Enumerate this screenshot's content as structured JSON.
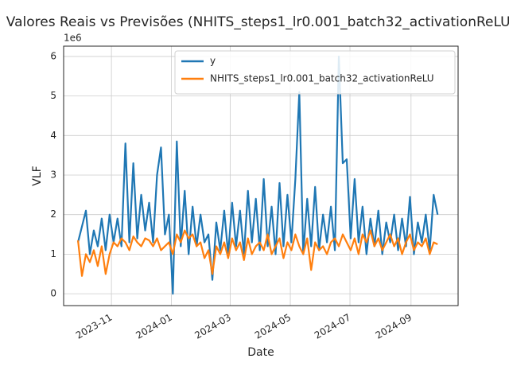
{
  "chart_data": {
    "type": "line",
    "title": "Valores Reais vs Previsões (NHITS_steps1_lr0.001_batch32_activationReLU)",
    "x_label": "Date",
    "y_label": "VLF",
    "offset_label": "1e6",
    "grid": true,
    "legend_loc": "upper right",
    "xlim": [
      2023.7,
      2024.798
    ],
    "xticks": [
      {
        "value": 2023.833,
        "label": "2023-11"
      },
      {
        "value": 2024.0,
        "label": "2024-01"
      },
      {
        "value": 2024.164,
        "label": "2024-03"
      },
      {
        "value": 2024.331,
        "label": "2024-05"
      },
      {
        "value": 2024.497,
        "label": "2024-07"
      },
      {
        "value": 2024.667,
        "label": "2024-09"
      }
    ],
    "ylim": [
      -0.3,
      6.26
    ],
    "yticks": [
      0,
      1,
      2,
      3,
      4,
      5,
      6
    ],
    "x": [
      2023.74,
      2023.751,
      2023.762,
      2023.773,
      2023.784,
      2023.795,
      2023.806,
      2023.817,
      2023.828,
      2023.839,
      2023.85,
      2023.861,
      2023.872,
      2023.883,
      2023.894,
      2023.905,
      2023.916,
      2023.927,
      2023.938,
      2023.949,
      2023.96,
      2023.971,
      2023.982,
      2023.993,
      2024.004,
      2024.015,
      2024.026,
      2024.037,
      2024.048,
      2024.059,
      2024.07,
      2024.081,
      2024.092,
      2024.103,
      2024.114,
      2024.125,
      2024.136,
      2024.147,
      2024.158,
      2024.169,
      2024.18,
      2024.191,
      2024.202,
      2024.213,
      2024.224,
      2024.235,
      2024.246,
      2024.257,
      2024.268,
      2024.279,
      2024.29,
      2024.301,
      2024.312,
      2024.323,
      2024.334,
      2024.345,
      2024.356,
      2024.367,
      2024.378,
      2024.389,
      2024.4,
      2024.411,
      2024.422,
      2024.433,
      2024.444,
      2024.455,
      2024.466,
      2024.477,
      2024.488,
      2024.499,
      2024.51,
      2024.521,
      2024.532,
      2024.543,
      2024.554,
      2024.565,
      2024.576,
      2024.587,
      2024.598,
      2024.609,
      2024.62,
      2024.631,
      2024.642,
      2024.653,
      2024.664,
      2024.675,
      2024.686,
      2024.697,
      2024.708,
      2024.719,
      2024.73,
      2024.741
    ],
    "series": [
      {
        "name": "y",
        "color": "#1f77b4",
        "values": [
          1.3,
          1.7,
          2.1,
          1.0,
          1.6,
          1.2,
          1.9,
          1.1,
          2.0,
          1.3,
          1.9,
          1.2,
          3.8,
          1.3,
          3.3,
          1.4,
          2.5,
          1.6,
          2.3,
          1.3,
          3.0,
          3.7,
          1.5,
          2.0,
          0.0,
          3.85,
          1.2,
          2.6,
          1.0,
          2.2,
          1.2,
          2.0,
          1.3,
          1.5,
          0.35,
          1.8,
          1.1,
          2.1,
          1.0,
          2.3,
          1.2,
          2.1,
          1.0,
          2.6,
          1.3,
          2.4,
          1.1,
          2.9,
          1.2,
          2.2,
          1.0,
          2.8,
          1.2,
          2.5,
          1.3,
          2.9,
          5.1,
          1.0,
          2.4,
          1.2,
          2.7,
          1.1,
          2.0,
          1.3,
          2.2,
          1.1,
          6.0,
          3.3,
          3.4,
          1.4,
          2.9,
          1.3,
          2.2,
          1.0,
          1.9,
          1.2,
          2.1,
          1.0,
          1.8,
          1.3,
          2.0,
          1.1,
          1.9,
          1.2,
          2.45,
          1.0,
          1.8,
          1.3,
          2.0,
          1.1,
          2.5,
          2.0
        ]
      },
      {
        "name": "NHITS_steps1_lr0.001_batch32_activationReLU",
        "color": "#ff7f0e",
        "values": [
          1.35,
          0.45,
          1.0,
          0.8,
          1.1,
          0.7,
          1.2,
          0.5,
          1.0,
          1.3,
          1.2,
          1.4,
          1.3,
          1.1,
          1.45,
          1.3,
          1.2,
          1.4,
          1.35,
          1.2,
          1.4,
          1.1,
          1.2,
          1.3,
          1.0,
          1.5,
          1.3,
          1.6,
          1.4,
          1.5,
          1.2,
          1.3,
          0.9,
          1.1,
          0.5,
          1.2,
          1.0,
          1.3,
          0.9,
          1.4,
          1.1,
          1.3,
          0.85,
          1.4,
          1.0,
          1.2,
          1.3,
          1.1,
          1.5,
          1.0,
          1.2,
          1.4,
          0.9,
          1.3,
          1.1,
          1.5,
          1.2,
          1.0,
          1.4,
          0.6,
          1.3,
          1.1,
          1.2,
          1.0,
          1.3,
          1.4,
          1.2,
          1.5,
          1.3,
          1.1,
          1.4,
          1.0,
          1.5,
          1.3,
          1.6,
          1.2,
          1.4,
          1.1,
          1.3,
          1.5,
          1.2,
          1.4,
          1.0,
          1.3,
          1.5,
          1.1,
          1.3,
          1.2,
          1.4,
          1.0,
          1.3,
          1.25
        ]
      }
    ]
  }
}
